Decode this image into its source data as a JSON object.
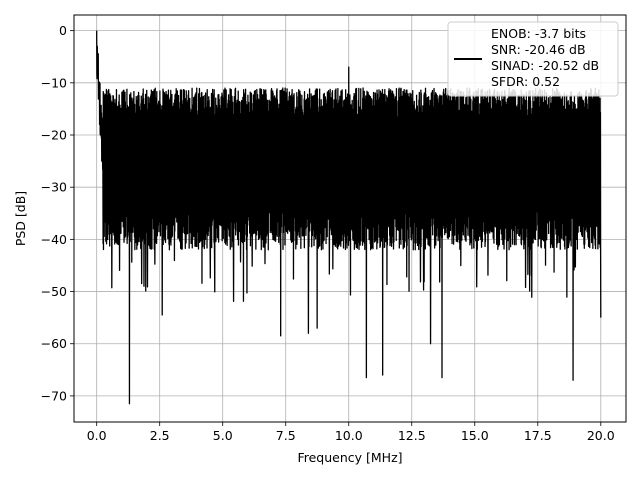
{
  "chart_data": {
    "type": "line",
    "title": "",
    "xlabel": "Frequency [MHz]",
    "ylabel": "PSD [dB]",
    "xlim": [
      -0.9,
      21.0
    ],
    "ylim": [
      -75,
      3
    ],
    "x_ticks": [
      0.0,
      2.5,
      5.0,
      7.5,
      10.0,
      12.5,
      15.0,
      17.5,
      20.0
    ],
    "x_tick_labels": [
      "0.0",
      "2.5",
      "5.0",
      "7.5",
      "10.0",
      "12.5",
      "15.0",
      "17.5",
      "20.0"
    ],
    "y_ticks": [
      0,
      -10,
      -20,
      -30,
      -40,
      -50,
      -60,
      -70
    ],
    "y_tick_labels": [
      "0",
      "−10",
      "−20",
      "−30",
      "−40",
      "−50",
      "−60",
      "−70"
    ],
    "grid": true,
    "legend_position": "top-right",
    "legend_lines": [
      "ENOB: -3.7 bits",
      "SNR: -20.46 dB",
      "SINAD: -20.52 dB",
      "SFDR: 0.52"
    ],
    "series": [
      {
        "color": "#000000",
        "x_range": [
          0.0,
          20.0
        ],
        "noise_floor_upper_db": -15,
        "noise_floor_mid_db": -26,
        "noise_floor_lower_db": -38,
        "points": [
          {
            "x": 0.0,
            "y": 0.0
          },
          {
            "x": 0.02,
            "y": -3.0
          },
          {
            "x": 0.05,
            "y": -7.5
          },
          {
            "x": 0.1,
            "y": -12.0
          },
          {
            "x": 0.15,
            "y": -20.0
          },
          {
            "x": 0.2,
            "y": -25.0
          },
          {
            "x": 10.0,
            "y": -7.0
          },
          {
            "x": 1.3,
            "y": -71.5
          },
          {
            "x": 2.6,
            "y": -54.5
          },
          {
            "x": 7.3,
            "y": -58.5
          },
          {
            "x": 8.4,
            "y": -58.0
          },
          {
            "x": 8.75,
            "y": -57.0
          },
          {
            "x": 10.7,
            "y": -66.5
          },
          {
            "x": 11.35,
            "y": -66.0
          },
          {
            "x": 13.05,
            "y": -60.0
          },
          {
            "x": 13.25,
            "y": -60.0
          },
          {
            "x": 13.7,
            "y": -66.5
          },
          {
            "x": 18.9,
            "y": -67.0
          },
          {
            "x": 20.0,
            "y": -55.0
          }
        ]
      }
    ]
  }
}
